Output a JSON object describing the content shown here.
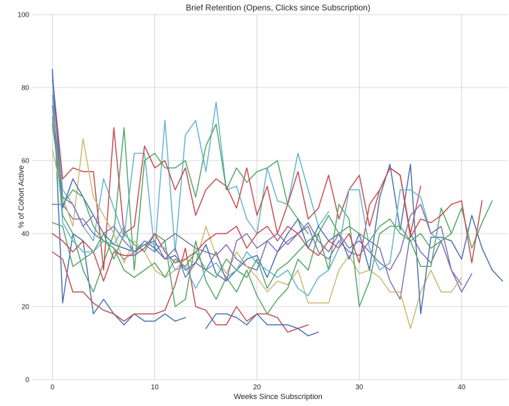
{
  "chart_data": {
    "type": "line",
    "title": "Brief Retention (Opens, Clicks since Subscription)",
    "xlabel": "Weeks Since Subscription",
    "ylabel": "% of Cohort Active",
    "xlim": [
      -2,
      44.5
    ],
    "ylim": [
      0,
      100
    ],
    "xticks": [
      0,
      10,
      20,
      30,
      40
    ],
    "yticks": [
      0,
      20,
      40,
      60,
      80,
      100
    ],
    "grid": true,
    "legend": "none",
    "palette": [
      "#4c72b0",
      "#55a868",
      "#c44e52",
      "#8172b2",
      "#ccb974",
      "#64b5cd"
    ],
    "series": [
      {
        "color": "#4c72b0",
        "x": [
          0,
          1,
          2,
          3,
          4,
          5,
          6,
          7,
          8,
          9,
          10,
          11,
          12,
          13
        ],
        "y": [
          85,
          21,
          40,
          38,
          18,
          22,
          18,
          15,
          18,
          16,
          16,
          18,
          16,
          17
        ]
      },
      {
        "color": "#c44e52",
        "x": [
          0,
          1,
          2,
          3,
          4,
          5,
          6,
          7,
          8,
          9,
          10,
          11,
          12,
          13,
          14,
          15,
          16,
          17,
          18,
          19,
          20,
          21,
          22,
          23,
          24,
          25
        ],
        "y": [
          35,
          33,
          24,
          24,
          21,
          19,
          18,
          16,
          18,
          18,
          18,
          19,
          26,
          36,
          20,
          19,
          15,
          15,
          20,
          16,
          18,
          18,
          17,
          13,
          14,
          15
        ]
      },
      {
        "color": "#4c72b0",
        "x": [
          15,
          16,
          17,
          18,
          19,
          20,
          21,
          22,
          23,
          24,
          25,
          26
        ],
        "y": [
          14,
          18,
          18,
          17,
          15,
          18,
          15,
          15,
          15,
          14,
          12,
          13
        ]
      },
      {
        "color": "#64b5cd",
        "x": [
          0,
          1,
          2,
          3,
          4,
          5,
          6,
          7,
          8,
          9,
          10,
          11,
          12,
          13,
          14,
          15,
          16,
          17,
          18,
          19,
          20,
          21,
          22,
          23,
          24,
          25,
          26,
          27
        ],
        "y": [
          82,
          52,
          48,
          42,
          38,
          55,
          47,
          39,
          62,
          62,
          35,
          71,
          35,
          67,
          71,
          57,
          76,
          52,
          53,
          44,
          40,
          58,
          49,
          48,
          62,
          52,
          42,
          46
        ]
      },
      {
        "color": "#55a868",
        "x": [
          0,
          1,
          2,
          3,
          4,
          5,
          6,
          7,
          8,
          9,
          10,
          11,
          12,
          13,
          14,
          15,
          16,
          17,
          18,
          19,
          20,
          21,
          22,
          23,
          24,
          25
        ],
        "y": [
          72,
          45,
          40,
          30,
          24,
          32,
          40,
          69,
          30,
          60,
          62,
          58,
          58,
          60,
          50,
          64,
          70,
          52,
          58,
          54,
          57,
          58,
          60,
          48,
          44,
          40
        ]
      },
      {
        "color": "#c44e52",
        "x": [
          0,
          1,
          2,
          3,
          4,
          5,
          6,
          7,
          8,
          9,
          10,
          11,
          12,
          13,
          14,
          15,
          16,
          17,
          18,
          19,
          20,
          21,
          22,
          23,
          24,
          25,
          26,
          27,
          28,
          29,
          30,
          31,
          32,
          33,
          34,
          35,
          36
        ],
        "y": [
          83,
          55,
          58,
          57,
          57,
          30,
          69,
          40,
          42,
          64,
          58,
          60,
          52,
          58,
          45,
          52,
          55,
          53,
          47,
          58,
          45,
          53,
          40,
          48,
          57,
          44,
          47,
          56,
          44,
          52,
          56,
          42,
          52,
          58,
          56,
          40,
          53
        ]
      },
      {
        "color": "#8172b2",
        "x": [
          0,
          1,
          2,
          3,
          4,
          5,
          6,
          7,
          8,
          9,
          10,
          11,
          12,
          13,
          14,
          15,
          16,
          17,
          18,
          19,
          20,
          21,
          22,
          23,
          24,
          25,
          26,
          27,
          28,
          29,
          30,
          31,
          32,
          33,
          34,
          35,
          36,
          37,
          38,
          39,
          40,
          41
        ],
        "y": [
          48,
          48,
          44,
          44,
          40,
          38,
          36,
          33,
          35,
          37,
          35,
          38,
          40,
          38,
          36,
          35,
          34,
          37,
          33,
          31,
          30,
          38,
          35,
          38,
          40,
          42,
          35,
          33,
          38,
          35,
          34,
          38,
          36,
          27,
          22,
          40,
          35,
          32,
          38,
          30,
          24,
          29
        ]
      },
      {
        "color": "#ccb974",
        "x": [
          0,
          1,
          2,
          3,
          4,
          5,
          6,
          7,
          8,
          9,
          10,
          11,
          12,
          13,
          14,
          15,
          16,
          17,
          18,
          19,
          20,
          21,
          22,
          23,
          24,
          25,
          26,
          27,
          28,
          29,
          30,
          31,
          32,
          33,
          34,
          35,
          36,
          37,
          38,
          39,
          40
        ],
        "y": [
          63,
          50,
          42,
          66,
          50,
          45,
          40,
          32,
          38,
          35,
          30,
          28,
          30,
          33,
          32,
          42,
          34,
          29,
          35,
          31,
          28,
          24,
          27,
          26,
          30,
          21,
          21,
          21,
          30,
          34,
          29,
          30,
          28,
          24,
          24,
          14,
          24,
          30,
          24,
          24,
          28
        ]
      },
      {
        "color": "#4c72b0",
        "x": [
          0,
          1,
          2,
          3,
          4,
          5,
          6,
          7,
          8,
          9,
          10,
          11,
          12,
          13,
          14,
          15,
          16,
          17,
          18,
          19,
          20,
          21,
          22,
          23,
          24,
          25,
          26,
          27,
          28,
          29,
          30,
          31,
          32,
          33,
          34,
          35,
          36,
          37,
          38,
          39,
          40,
          41,
          42,
          43,
          44
        ],
        "y": [
          84,
          47,
          55,
          50,
          45,
          40,
          37,
          36,
          35,
          38,
          36,
          33,
          34,
          30,
          32,
          37,
          29,
          27,
          30,
          33,
          34,
          28,
          35,
          40,
          44,
          36,
          42,
          38,
          40,
          33,
          40,
          30,
          50,
          59,
          41,
          59,
          18,
          39,
          39,
          38,
          33,
          45,
          36,
          30,
          27
        ]
      },
      {
        "color": "#55a868",
        "x": [
          0,
          1,
          2,
          3,
          4,
          5,
          6,
          7,
          8,
          9,
          10,
          11,
          12,
          13,
          14,
          15,
          16,
          17,
          18,
          19,
          20,
          21,
          22,
          23,
          24,
          25,
          26,
          27,
          28,
          29,
          30,
          31,
          32,
          33,
          34,
          35,
          36,
          37,
          38,
          39,
          40,
          41,
          42,
          43
        ],
        "y": [
          43,
          42,
          31,
          33,
          35,
          40,
          33,
          40,
          37,
          35,
          40,
          38,
          20,
          22,
          38,
          27,
          22,
          28,
          24,
          30,
          23,
          18,
          22,
          25,
          33,
          30,
          40,
          30,
          48,
          44,
          20,
          27,
          40,
          42,
          42,
          38,
          31,
          31,
          47,
          40,
          47,
          36,
          43,
          49
        ]
      },
      {
        "color": "#c44e52",
        "x": [
          0,
          1,
          2,
          3,
          4,
          5,
          6,
          7,
          8,
          9,
          10,
          11,
          12,
          13,
          14,
          15,
          16,
          17,
          18,
          19,
          20,
          21,
          22,
          23,
          24,
          25,
          26,
          27,
          28,
          29,
          30,
          31,
          32,
          33,
          34,
          35,
          36,
          37,
          38,
          39,
          40,
          41,
          42
        ],
        "y": [
          40,
          38,
          35,
          38,
          35,
          27,
          35,
          34,
          34,
          36,
          40,
          35,
          32,
          33,
          35,
          38,
          40,
          40,
          42,
          36,
          40,
          42,
          38,
          42,
          40,
          36,
          34,
          38,
          36,
          40,
          32,
          48,
          52,
          58,
          56,
          39,
          44,
          43,
          45,
          48,
          49,
          32,
          49
        ]
      },
      {
        "color": "#64b5cd",
        "x": [
          0,
          1,
          2,
          3,
          4,
          5,
          6,
          7,
          8,
          9,
          10,
          11,
          12,
          13,
          14,
          15,
          16,
          17,
          18,
          19,
          20,
          21,
          22,
          23,
          24,
          25,
          26,
          27,
          28,
          29,
          30,
          31,
          32,
          33,
          34,
          35,
          36,
          37,
          38
        ],
        "y": [
          78,
          43,
          38,
          35,
          35,
          38,
          37,
          42,
          34,
          38,
          37,
          36,
          30,
          31,
          25,
          30,
          32,
          28,
          30,
          35,
          32,
          30,
          28,
          30,
          25,
          23,
          28,
          30,
          36,
          52,
          52,
          36,
          30,
          32,
          52,
          52,
          50,
          40,
          38
        ]
      },
      {
        "color": "#8172b2",
        "x": [
          0,
          1,
          2,
          3,
          4,
          5,
          6,
          7,
          8,
          9,
          10,
          11,
          12,
          13,
          14,
          15,
          16,
          17,
          18,
          19,
          20,
          21,
          22,
          23,
          24,
          25,
          26,
          27,
          28,
          29,
          30,
          31,
          32,
          33,
          34,
          35,
          36,
          37,
          38,
          39,
          40
        ],
        "y": [
          75,
          50,
          48,
          42,
          45,
          40,
          42,
          38,
          35,
          37,
          38,
          33,
          36,
          28,
          32,
          30,
          35,
          27,
          38,
          40,
          36,
          38,
          40,
          37,
          40,
          43,
          38,
          35,
          40,
          36,
          38,
          35,
          32,
          30,
          35,
          45,
          48,
          40,
          42,
          30,
          26
        ]
      },
      {
        "color": "#55a868",
        "x": [
          0,
          1,
          2,
          3,
          4,
          5,
          6,
          7,
          8,
          9,
          10,
          11,
          12,
          13,
          14,
          15,
          16,
          17,
          18,
          19,
          20,
          21,
          22,
          23,
          24,
          25,
          26,
          27,
          28,
          29,
          30,
          31,
          32,
          33,
          34,
          35,
          36,
          37,
          38,
          39
        ],
        "y": [
          70,
          48,
          52,
          50,
          42,
          38,
          36,
          30,
          28,
          30,
          32,
          28,
          33,
          31,
          35,
          30,
          28,
          33,
          30,
          28,
          33,
          25,
          30,
          32,
          35,
          38,
          40,
          45,
          40,
          42,
          40,
          38,
          42,
          44,
          40,
          38,
          40,
          36,
          38,
          40
        ]
      }
    ]
  }
}
